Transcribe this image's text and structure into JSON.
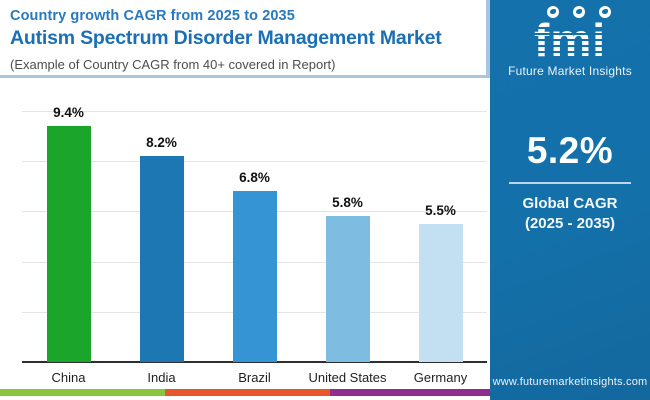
{
  "header": {
    "kicker": "Country growth CAGR from 2025 to 2035",
    "title": "Autism Spectrum Disorder Management Market",
    "note": "(Example of Country CAGR from 40+ covered in Report)"
  },
  "sidebar": {
    "logo_text": "fmi",
    "logo_tagline": "Future Market Insights",
    "logo_icons": [
      "north-america-map-icon",
      "south-america-map-icon",
      "globe-icon"
    ],
    "stat_value": "5.2%",
    "stat_label_line1": "Global CAGR",
    "stat_label_line2": "(2025 - 2035)",
    "website": "www.futuremarketinsights.com",
    "bg_color": "#1470A9"
  },
  "chart_data": {
    "type": "bar",
    "title": "Autism Spectrum Disorder Management Market",
    "subtitle": "Country growth CAGR from 2025 to 2035",
    "categories": [
      "China",
      "India",
      "Brazil",
      "United States",
      "Germany"
    ],
    "values": [
      9.4,
      8.2,
      6.8,
      5.8,
      5.5
    ],
    "value_labels": [
      "9.4%",
      "8.2%",
      "6.8%",
      "5.8%",
      "5.5%"
    ],
    "bar_colors": [
      "#1BA62B",
      "#1D77B2",
      "#3494D4",
      "#7FBCE2",
      "#C2E0F2"
    ],
    "xlabel": "",
    "ylabel": "",
    "ylim": [
      0,
      10.6
    ],
    "gridline_values": [
      2,
      4,
      6,
      8,
      10
    ],
    "grid": "horizontal-only",
    "legend": "none"
  },
  "footer_stripe": {
    "colors": [
      "#8BC540",
      "#E8572A",
      "#8F2D90"
    ],
    "widths": [
      165,
      165,
      160
    ]
  }
}
